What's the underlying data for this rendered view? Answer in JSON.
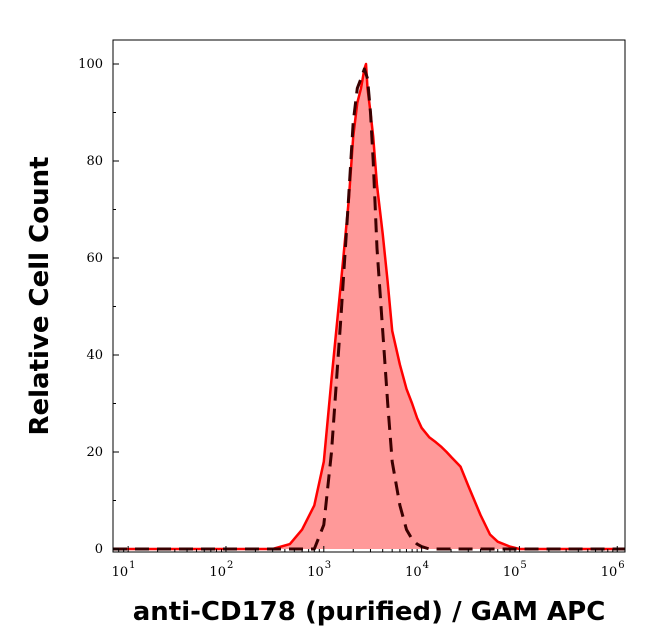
{
  "chart_data": {
    "type": "area",
    "title": "",
    "xlabel": "anti-CD178 (purified) / GAM APC",
    "ylabel": "Relative Cell Count",
    "x_scale": "log",
    "xlim": [
      7,
      1200000
    ],
    "ylim": [
      0,
      100
    ],
    "grid": false,
    "legend": "none",
    "x_ticks": [
      {
        "base": "10",
        "exp": "1",
        "value": 10
      },
      {
        "base": "10",
        "exp": "2",
        "value": 100
      },
      {
        "base": "10",
        "exp": "3",
        "value": 1000
      },
      {
        "base": "10",
        "exp": "4",
        "value": 10000
      },
      {
        "base": "10",
        "exp": "5",
        "value": 100000
      },
      {
        "base": "10",
        "exp": "6",
        "value": 1000000
      }
    ],
    "y_ticks": [
      "0",
      "20",
      "40",
      "60",
      "80",
      "100"
    ],
    "series": [
      {
        "style": "filled-solid",
        "line_color": "#ff0000",
        "fill_color": "#ff9999",
        "x": [
          7,
          50,
          200,
          300,
          450,
          600,
          800,
          1000,
          1200,
          1500,
          1800,
          2000,
          2200,
          2400,
          2600,
          2700,
          2800,
          3000,
          3200,
          3500,
          4000,
          4500,
          5000,
          6000,
          7000,
          8000,
          9000,
          10000,
          12000,
          14000,
          16000,
          18000,
          20000,
          25000,
          30000,
          40000,
          50000,
          60000,
          80000,
          100000,
          1200000
        ],
        "y": [
          0,
          0,
          0,
          0,
          1,
          4,
          9,
          18,
          35,
          55,
          72,
          85,
          92,
          95,
          99,
          100,
          95,
          90,
          85,
          75,
          65,
          55,
          45,
          38,
          33,
          30,
          27,
          25,
          23,
          22,
          21,
          20,
          19,
          17,
          13,
          7,
          3,
          1.5,
          0.5,
          0,
          0
        ]
      },
      {
        "style": "dashed",
        "line_color": "#3a0000",
        "x": [
          7,
          800,
          1000,
          1200,
          1500,
          1800,
          2000,
          2200,
          2400,
          2600,
          2800,
          3000,
          3200,
          3500,
          4000,
          4500,
          5000,
          6000,
          7000,
          8000,
          9000,
          10000,
          12000,
          15000,
          20000,
          1200000
        ],
        "y": [
          0,
          0,
          5,
          20,
          48,
          73,
          88,
          95,
          97,
          99,
          97,
          90,
          80,
          62,
          45,
          30,
          18,
          9,
          4,
          2,
          1,
          0.5,
          0,
          0,
          0,
          0
        ]
      }
    ]
  }
}
